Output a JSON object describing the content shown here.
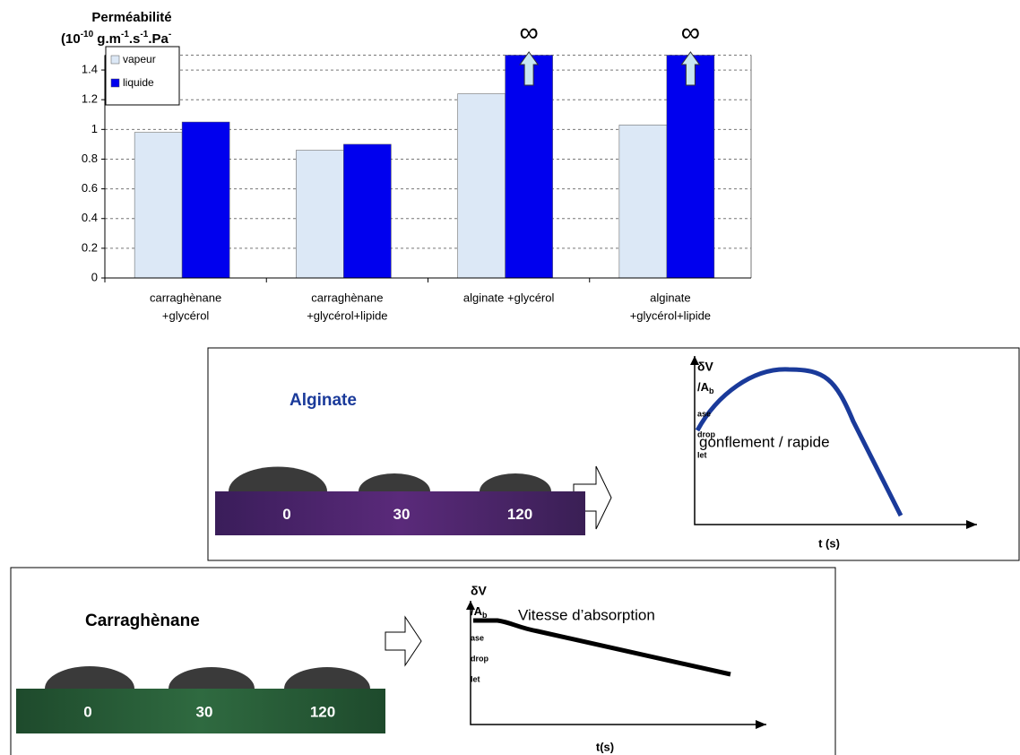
{
  "chart_data": {
    "type": "bar",
    "ylabel": [
      "Perméabilité",
      [
        "(10",
        "-10",
        " g.m",
        "-1",
        ".s",
        "-1",
        ".Pa",
        "-"
      ]
    ],
    "categories": [
      [
        "carraghènane",
        "+glycérol"
      ],
      [
        "carraghènane",
        "+glycérol+lipide"
      ],
      [
        "alginate +glycérol"
      ],
      [
        "alginate",
        "+glycérol+lipide"
      ]
    ],
    "series": [
      {
        "name": "vapeur",
        "color": "#dce8f6",
        "values": [
          0.98,
          0.86,
          1.24,
          1.03
        ]
      },
      {
        "name": "liquide",
        "color": "#0000ee",
        "values": [
          1.05,
          0.9,
          null,
          null
        ],
        "value_labels": [
          null,
          null,
          "∞",
          "∞"
        ]
      }
    ],
    "ylim": [
      0,
      1.5
    ],
    "yticks": [
      0,
      0.2,
      0.4,
      0.6,
      0.8,
      1,
      1.2,
      1.4
    ],
    "grid": true,
    "legend": "top-left"
  },
  "panels": [
    {
      "title": "Alginate",
      "times": [
        0,
        30,
        120
      ],
      "ylabel": [
        "δV",
        "/A",
        "b",
        "ase",
        "drop",
        "let"
      ],
      "annotation": "gonflement /   rapide",
      "xlabel": "t (s)"
    },
    {
      "title": "Carraghènane",
      "times": [
        0,
        30,
        120
      ],
      "ylabel": [
        "δV",
        "/A",
        "b",
        "ase",
        "drop",
        "let"
      ],
      "annotation": "Vitesse d’absorption",
      "xlabel": "t(s)"
    }
  ]
}
